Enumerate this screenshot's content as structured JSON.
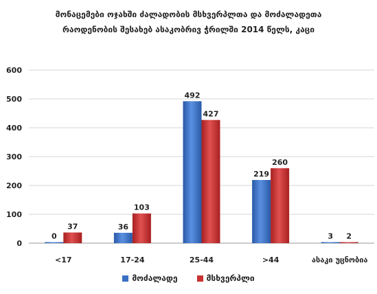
{
  "chart_data": {
    "type": "bar",
    "title": [
      "მონაცემები ოჯახში ძალადობის მსხვერპლთა და მოძალადეთა",
      "რაოდენობის შესახებ ასაკობრივ ჭრილში 2014 წელს, კაცი"
    ],
    "categories": [
      "<17",
      "17-24",
      "25-44",
      ">44",
      "ასაკი უცნობია"
    ],
    "series": [
      {
        "name": "მოძალადე",
        "values": [
          0,
          36,
          492,
          219,
          3
        ],
        "color": "#3a6fc4"
      },
      {
        "name": "მსხვერპლი",
        "values": [
          37,
          103,
          427,
          260,
          2
        ],
        "color": "#c83232"
      }
    ],
    "yticks": [
      0,
      100,
      200,
      300,
      400,
      500,
      600
    ],
    "ylim": [
      0,
      600
    ],
    "grid": true,
    "legend_position": "bottom"
  }
}
